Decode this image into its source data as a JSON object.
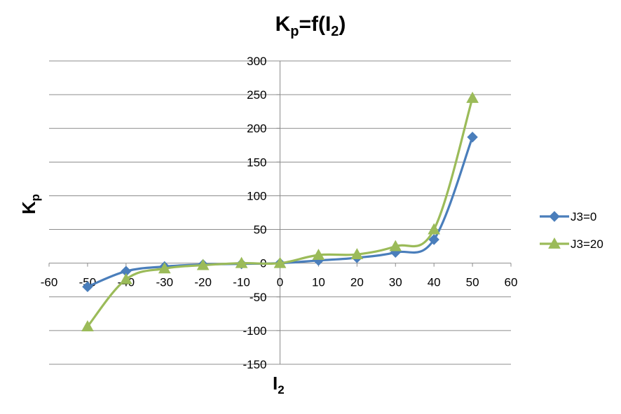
{
  "chart_data": {
    "type": "line",
    "title": {
      "main": "K",
      "sub": "p",
      "eq": "=f(I",
      "arg_sub": "2",
      "close": ")"
    },
    "xlabel": {
      "main": "I",
      "sub": "2"
    },
    "ylabel": {
      "main": "K",
      "sub": "p"
    },
    "xlim": [
      -60,
      60
    ],
    "ylim": [
      -150,
      300
    ],
    "x_ticks": [
      -60,
      -50,
      -40,
      -30,
      -20,
      -10,
      0,
      10,
      20,
      30,
      40,
      50,
      60
    ],
    "y_ticks": [
      -150,
      -100,
      -50,
      0,
      50,
      100,
      150,
      200,
      250,
      300
    ],
    "grid": "horizontal",
    "legend": "right",
    "x": [
      -50,
      -40,
      -30,
      -20,
      -10,
      0,
      10,
      20,
      30,
      40,
      50
    ],
    "series": [
      {
        "name": "J3=0",
        "color": "#4a7ebb",
        "marker": "diamond",
        "values": [
          -35,
          -12,
          -5,
          -2,
          -1,
          0,
          4,
          8,
          16,
          35,
          187
        ]
      },
      {
        "name": "J3=20",
        "color": "#9bbb59",
        "marker": "triangle",
        "values": [
          -94,
          -24,
          -8,
          -3,
          0,
          0,
          12,
          13,
          25,
          50,
          245
        ]
      }
    ]
  }
}
